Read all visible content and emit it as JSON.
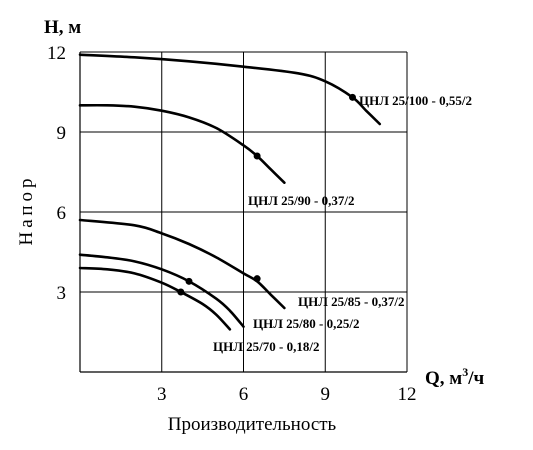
{
  "chart_data": {
    "type": "line",
    "xlabel": "Производительность",
    "ylabel": "Напор",
    "x_unit_label": "Q, м",
    "x_unit_sup": "3",
    "x_unit_tail": "/ч",
    "y_unit_label": "H, м",
    "xlim": [
      0,
      12
    ],
    "ylim": [
      0,
      12
    ],
    "x_ticks": [
      "3",
      "6",
      "9",
      "12"
    ],
    "y_ticks": [
      "3",
      "6",
      "9",
      "12"
    ],
    "grid": true,
    "series": [
      {
        "name": "ЦНЛ 25/100 - 0,55/2",
        "x": [
          0,
          2,
          4,
          6,
          8,
          9,
          10,
          10.5,
          11
        ],
        "y": [
          11.9,
          11.8,
          11.65,
          11.45,
          11.2,
          10.9,
          10.3,
          9.8,
          9.3
        ],
        "marker": [
          10.0,
          10.3
        ]
      },
      {
        "name": "ЦНЛ 25/90 - 0,37/2",
        "x": [
          0,
          1,
          2,
          3,
          4,
          5,
          6,
          6.5,
          7,
          7.5
        ],
        "y": [
          10.0,
          10.0,
          9.95,
          9.8,
          9.55,
          9.15,
          8.5,
          8.1,
          7.6,
          7.1
        ],
        "marker": [
          6.5,
          8.1
        ]
      },
      {
        "name": "ЦНЛ 25/85 - 0,37/2",
        "x": [
          0,
          2,
          3,
          4,
          5,
          6,
          6.5,
          7,
          7.5
        ],
        "y": [
          5.7,
          5.5,
          5.2,
          4.8,
          4.3,
          3.7,
          3.4,
          2.9,
          2.4
        ],
        "marker": [
          6.5,
          3.5
        ]
      },
      {
        "name": "ЦНЛ 25/80 - 0,25/2",
        "x": [
          0,
          1,
          2,
          3,
          4,
          5,
          5.5,
          6
        ],
        "y": [
          4.4,
          4.3,
          4.15,
          3.85,
          3.4,
          2.75,
          2.3,
          1.7
        ],
        "marker": [
          4.0,
          3.4
        ]
      },
      {
        "name": "ЦНЛ 25/70 - 0,18/2",
        "x": [
          0,
          1,
          2,
          3,
          3.7,
          4.5,
          5,
          5.5
        ],
        "y": [
          3.9,
          3.85,
          3.7,
          3.35,
          3.0,
          2.55,
          2.15,
          1.6
        ],
        "marker": [
          3.7,
          3.0
        ]
      }
    ]
  }
}
